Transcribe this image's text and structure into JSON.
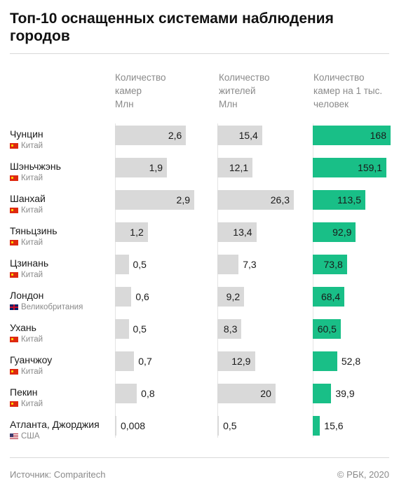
{
  "title": "Топ-10 оснащенных системами наблюдения городов",
  "columns": [
    {
      "line1": "Количество",
      "line2": "камер",
      "line3": "Млн"
    },
    {
      "line1": "Количество",
      "line2": "жителей",
      "line3": "Млн"
    },
    {
      "line1": "Количество",
      "line2": "камер на 1 тыс.",
      "line3": "человек"
    }
  ],
  "footer": {
    "source": "Источник: Comparitech",
    "copyright": "© РБК, 2020"
  },
  "colors": {
    "gray_bar": "#d9d9d9",
    "green_bar": "#19bf87"
  },
  "chart_data": {
    "type": "bar",
    "orientation": "horizontal",
    "categories": [
      "Чунцин",
      "Шэньчжэнь",
      "Шанхай",
      "Тяньцзинь",
      "Цзинань",
      "Лондон",
      "Ухань",
      "Гуанчжоу",
      "Пекин",
      "Атланта, Джорджия"
    ],
    "countries": [
      "Китай",
      "Китай",
      "Китай",
      "Китай",
      "Китай",
      "Великобритания",
      "Китай",
      "Китай",
      "Китай",
      "США"
    ],
    "flags": [
      "cn",
      "cn",
      "cn",
      "cn",
      "cn",
      "uk",
      "cn",
      "cn",
      "cn",
      "us"
    ],
    "series": [
      {
        "values": [
          2.6,
          1.9,
          2.9,
          1.2,
          0.5,
          0.6,
          0.5,
          0.7,
          0.8,
          0.008
        ],
        "labels": [
          "2,6",
          "1,9",
          "2,9",
          "1,2",
          "0,5",
          "0,6",
          "0,5",
          "0,7",
          "0,8",
          "0,008"
        ],
        "max": 2.9
      },
      {
        "values": [
          15.4,
          12.1,
          26.3,
          13.4,
          7.3,
          9.2,
          8.3,
          12.9,
          20,
          0.5
        ],
        "labels": [
          "15,4",
          "12,1",
          "26,3",
          "13,4",
          "7,3",
          "9,2",
          "8,3",
          "12,9",
          "20",
          "0,5"
        ],
        "max": 26.3
      },
      {
        "values": [
          168,
          159.1,
          113.5,
          92.9,
          73.8,
          68.4,
          60.5,
          52.8,
          39.9,
          15.6
        ],
        "labels": [
          "168",
          "159,1",
          "113,5",
          "92,9",
          "73,8",
          "68,4",
          "60,5",
          "52,8",
          "39,9",
          "15,6"
        ],
        "max": 168
      }
    ]
  }
}
